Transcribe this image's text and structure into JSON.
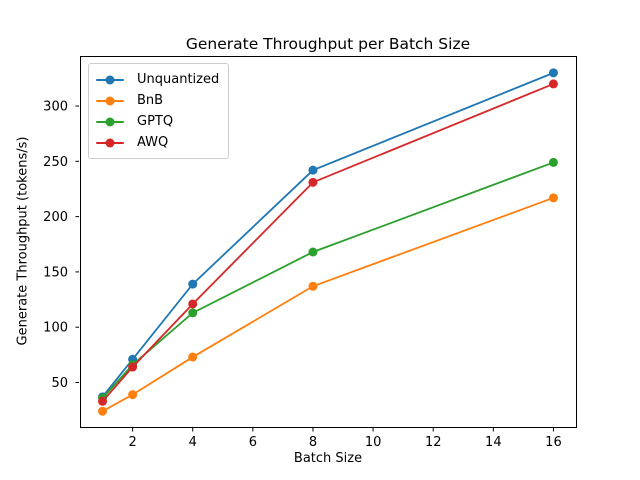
{
  "chart_data": {
    "type": "line",
    "title": "Generate Throughput per Batch Size",
    "xlabel": "Batch Size",
    "ylabel": "Generate Throughput (tokens/s)",
    "x": [
      1,
      2,
      4,
      8,
      16
    ],
    "series": [
      {
        "name": "Unquantized",
        "color": "#1f77b4",
        "values": [
          37,
          71,
          139,
          242,
          330
        ]
      },
      {
        "name": "BnB",
        "color": "#ff7f0e",
        "values": [
          24,
          39,
          73,
          137,
          217
        ]
      },
      {
        "name": "GPTQ",
        "color": "#2ca02c",
        "values": [
          36,
          66,
          113,
          168,
          249
        ]
      },
      {
        "name": "AWQ",
        "color": "#d62728",
        "values": [
          33,
          64,
          121,
          231,
          320
        ]
      }
    ],
    "xticks": [
      2,
      4,
      6,
      8,
      10,
      12,
      14,
      16
    ],
    "yticks": [
      50,
      100,
      150,
      200,
      250,
      300
    ],
    "xlim": [
      0.25,
      16.75
    ],
    "ylim": [
      9.75,
      345.25
    ],
    "grid": false,
    "marker": "o",
    "legend_position": "upper left"
  },
  "colors": {
    "background": "#ffffff",
    "axis": "#000000",
    "legend_border": "#cccccc"
  }
}
